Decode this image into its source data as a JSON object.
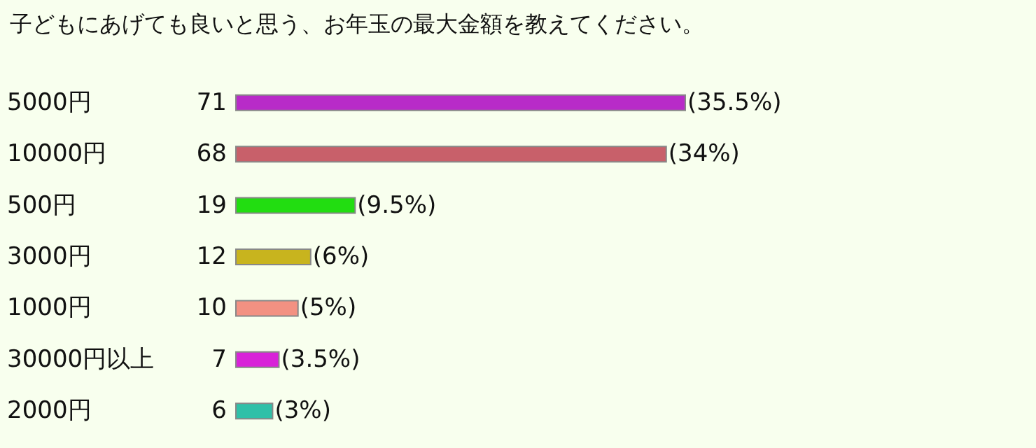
{
  "chart_data": {
    "type": "bar",
    "orientation": "horizontal",
    "title": "子どもにあげても良いと思う、お年玉の最大金額を教えてください。",
    "categories": [
      "5000円",
      "10000円",
      "500円",
      "3000円",
      "1000円",
      "30000円以上",
      "2000円"
    ],
    "values": [
      71,
      68,
      19,
      12,
      10,
      7,
      6
    ],
    "colors": [
      "#b82bc8",
      "#c8606a",
      "#22dd11",
      "#c8b41e",
      "#f39182",
      "#d822d8",
      "#30c0a8"
    ],
    "data_labels": true,
    "annotations": [
      {
        "text": "(35.5%)",
        "x": 71,
        "y": "5000円"
      },
      {
        "text": "(34%)",
        "x": 68,
        "y": "10000円"
      },
      {
        "text": "(9.5%)",
        "x": 19,
        "y": "500円"
      },
      {
        "text": "(6%)",
        "x": 12,
        "y": "3000円"
      },
      {
        "text": "(5%)",
        "x": 10,
        "y": "1000円"
      },
      {
        "text": "(3.5%)",
        "x": 7,
        "y": "30000円以上"
      },
      {
        "text": "(3%)",
        "x": 6,
        "y": "2000円"
      }
    ]
  }
}
